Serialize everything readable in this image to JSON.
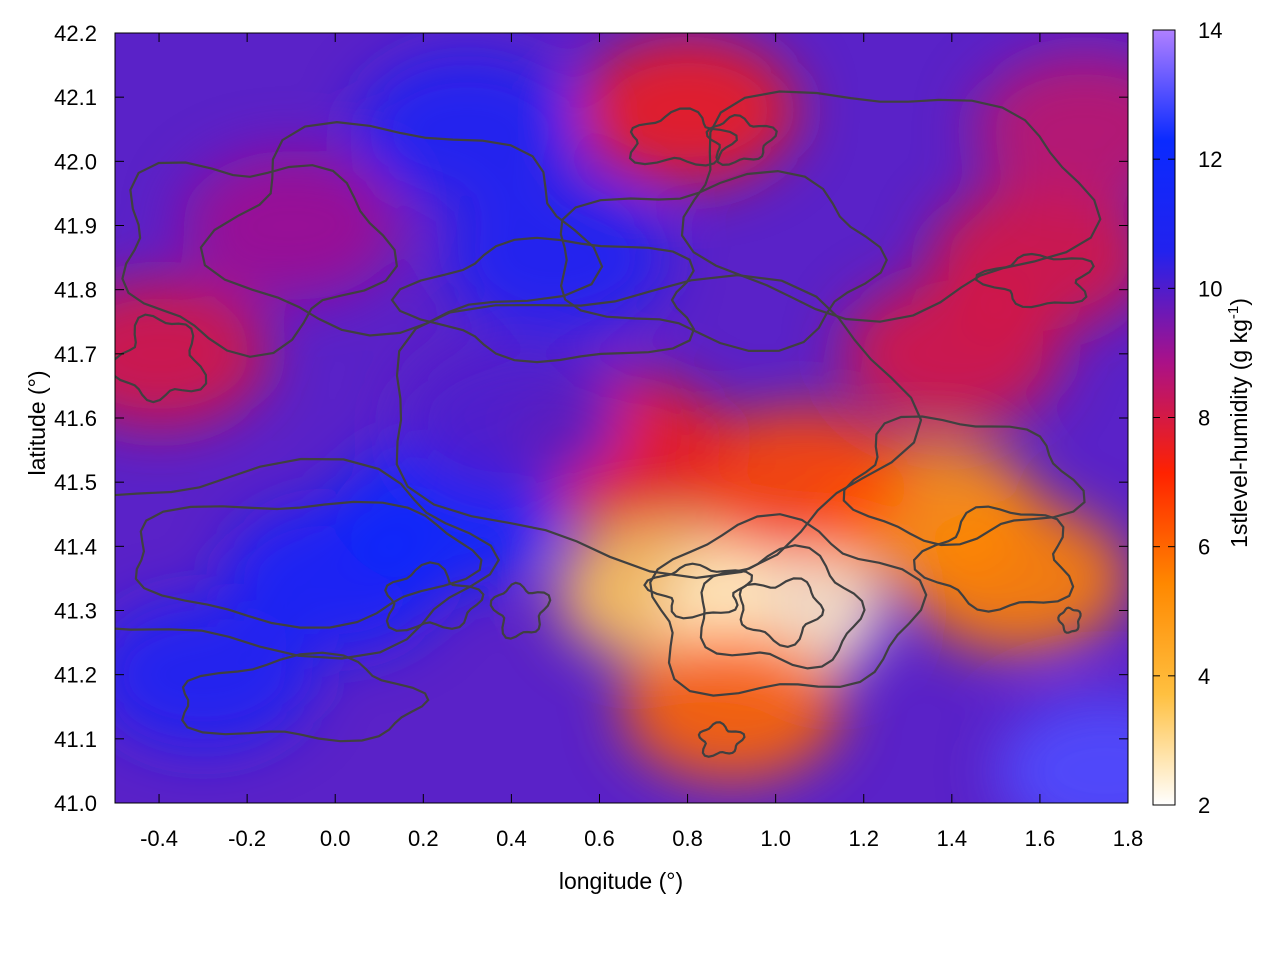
{
  "chart_data": {
    "type": "heatmap",
    "title": "",
    "xlabel": "longitude (°)",
    "ylabel": "latitude (°)",
    "colorbar_label": "1stlevel-humidity (g kg",
    "colorbar_label_sup": "-1",
    "colorbar_label_end": ")",
    "xlim": [
      -0.5,
      1.8
    ],
    "ylim": [
      41.0,
      42.2
    ],
    "clim": [
      2,
      14
    ],
    "x_ticks": [
      -0.4,
      -0.2,
      0.0,
      0.2,
      0.4,
      0.6,
      0.8,
      1.0,
      1.2,
      1.4,
      1.6,
      1.8
    ],
    "x_tick_labels": [
      "-0.4",
      "-0.2",
      "0.0",
      "0.2",
      "0.4",
      "0.6",
      "0.8",
      "1.0",
      "1.2",
      "1.4",
      "1.6",
      "1.8"
    ],
    "y_ticks": [
      41.0,
      41.1,
      41.2,
      41.3,
      41.4,
      41.5,
      41.6,
      41.7,
      41.8,
      41.9,
      42.0,
      42.1,
      42.2
    ],
    "y_tick_labels": [
      "41.0",
      "41.1",
      "41.2",
      "41.3",
      "41.4",
      "41.5",
      "41.6",
      "41.7",
      "41.8",
      "41.9",
      "42.0",
      "42.1",
      "42.2"
    ],
    "c_ticks": [
      2,
      4,
      6,
      8,
      10,
      12,
      14
    ],
    "c_tick_labels": [
      "2",
      "4",
      "6",
      "8",
      "10",
      "12",
      "14"
    ],
    "colormap": [
      "#ffffff",
      "#ffc040",
      "#ff8800",
      "#ff2200",
      "#aa1188",
      "#2222ee",
      "#0a2aff",
      "#b080ff"
    ],
    "contour_color": "#404040",
    "grid": false,
    "legend": "none",
    "field_features": [
      {
        "lon": 0.75,
        "lat": 41.33,
        "value": 3.5
      },
      {
        "lon": 1.0,
        "lat": 41.3,
        "value": 2.5
      },
      {
        "lon": 1.35,
        "lat": 41.45,
        "value": 5.0
      },
      {
        "lon": 1.05,
        "lat": 41.5,
        "value": 6.5
      },
      {
        "lon": 1.55,
        "lat": 41.35,
        "value": 5.5
      },
      {
        "lon": 0.9,
        "lat": 41.15,
        "value": 6.0
      },
      {
        "lon": 0.65,
        "lat": 41.55,
        "value": 7.5
      },
      {
        "lon": 1.4,
        "lat": 41.7,
        "value": 8.0
      },
      {
        "lon": 1.6,
        "lat": 41.85,
        "value": 8.0
      },
      {
        "lon": 1.7,
        "lat": 42.05,
        "value": 8.5
      },
      {
        "lon": -0.4,
        "lat": 41.7,
        "value": 8.0
      },
      {
        "lon": -0.1,
        "lat": 41.9,
        "value": 9.0
      },
      {
        "lon": 0.8,
        "lat": 42.08,
        "value": 7.5
      },
      {
        "lon": 0.0,
        "lat": 41.35,
        "value": 11.5
      },
      {
        "lon": 0.25,
        "lat": 41.45,
        "value": 12.0
      },
      {
        "lon": -0.3,
        "lat": 41.2,
        "value": 11.0
      },
      {
        "lon": 0.5,
        "lat": 41.85,
        "value": 11.0
      },
      {
        "lon": 0.3,
        "lat": 42.05,
        "value": 11.0
      },
      {
        "lon": 0.4,
        "lat": 41.6,
        "value": 10.0
      },
      {
        "lon": 1.75,
        "lat": 41.05,
        "value": 13.0
      }
    ]
  }
}
